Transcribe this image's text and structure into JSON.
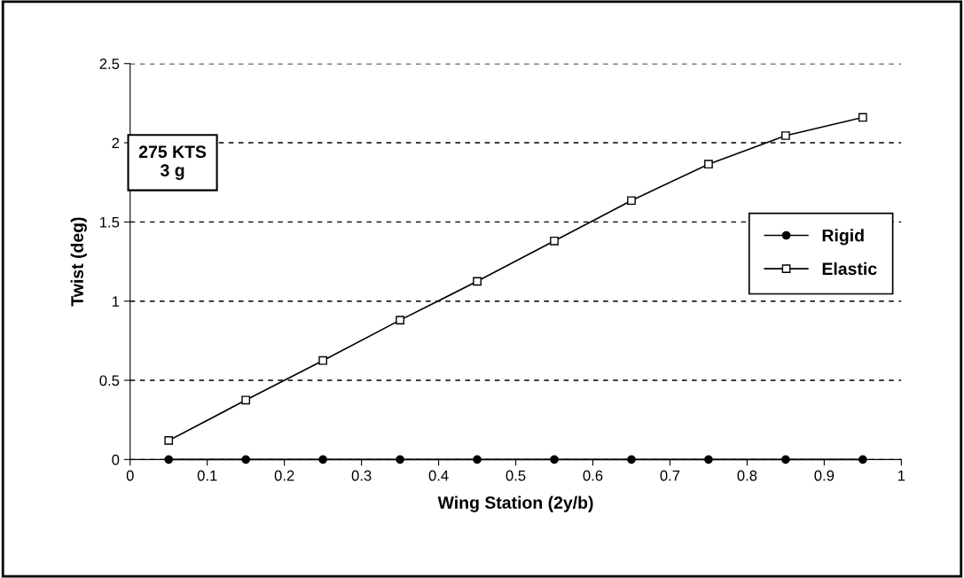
{
  "chart_data": {
    "type": "line",
    "xlabel": "Wing Station (2y/b)",
    "ylabel": "Twist (deg)",
    "x": [
      0.05,
      0.15,
      0.25,
      0.35,
      0.45,
      0.55,
      0.65,
      0.75,
      0.85,
      0.95
    ],
    "series": [
      {
        "name": "Rigid",
        "color": "#000000",
        "marker": "circle",
        "values": [
          0,
          0,
          0,
          0,
          0,
          0,
          0,
          0,
          0,
          0
        ]
      },
      {
        "name": "Elastic",
        "color": "#000000",
        "marker": "square",
        "values": [
          0.12,
          0.375,
          0.625,
          0.88,
          1.125,
          1.38,
          1.635,
          1.865,
          2.045,
          2.16
        ]
      }
    ],
    "xlim": [
      0,
      1
    ],
    "xticks": [
      0,
      0.1,
      0.2,
      0.3,
      0.4,
      0.5,
      0.6,
      0.7,
      0.8,
      0.9,
      1
    ],
    "ylim": [
      0,
      2.5
    ],
    "yticks": [
      0,
      0.5,
      1,
      1.5,
      2,
      2.5
    ],
    "grid": "y",
    "legend": "right",
    "line_style": "solid",
    "annotations": [
      "275 KTS\n3 g"
    ]
  }
}
